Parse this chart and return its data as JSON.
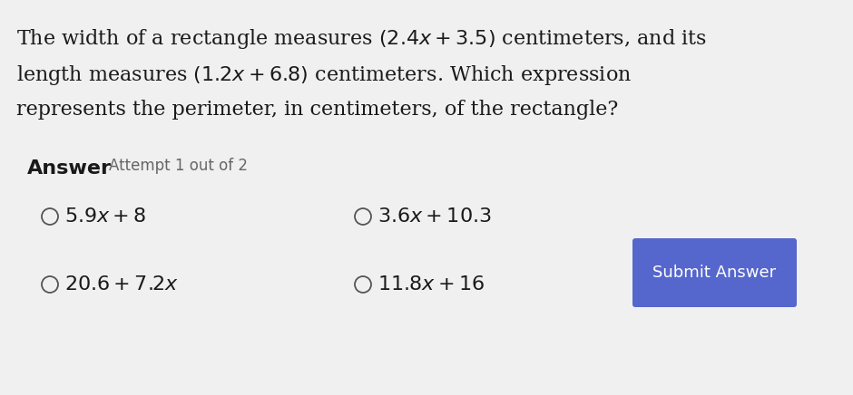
{
  "background_color": "#f0f0f0",
  "question_line1": "The width of a rectangle measures $(2.4x + 3.5)$ centimeters, and its",
  "question_line2": "length measures $(1.2x + 6.8)$ centimeters. Which expression",
  "question_line3": "represents the perimeter, in centimeters, of the rectangle?",
  "answer_label": "Answer",
  "attempt_label": "Attempt 1 out of 2",
  "options": [
    {
      "text": "$5.9x + 8$",
      "col": 0,
      "row": 0
    },
    {
      "text": "$3.6x + 10.3$",
      "col": 1,
      "row": 0
    },
    {
      "text": "$20.6 + 7.2x$",
      "col": 0,
      "row": 1
    },
    {
      "text": "$11.8x + 16$",
      "col": 1,
      "row": 1
    }
  ],
  "submit_button": {
    "label": "Submit Answer",
    "color": "#5566cc",
    "text_color": "#ffffff"
  },
  "question_text_color": "#1a1a1a",
  "option_text_color": "#1a1a1a",
  "answer_bold_color": "#1a1a1a",
  "attempt_color": "#666666",
  "circle_color": "#555555",
  "q_font_size": 16,
  "opt_font_size": 16,
  "answer_font_size": 16,
  "attempt_font_size": 12
}
